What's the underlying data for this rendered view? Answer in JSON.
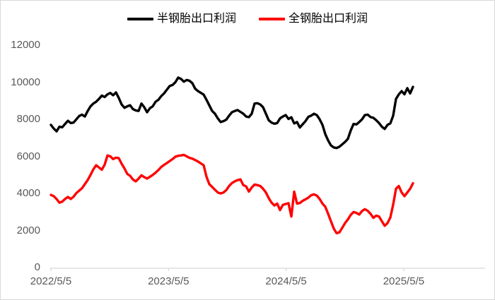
{
  "chart_data": {
    "type": "line",
    "title": "",
    "legend_position": "top",
    "grid": false,
    "colors": {
      "axis_line": "#d6d6d6",
      "tick_label": "#595959",
      "frame_border": "#d9d9d9",
      "background": "#ffffff"
    },
    "x_axis": {
      "unit": "years since 2022/5/5",
      "tick_labels": [
        "2022/5/5",
        "2023/5/5",
        "2024/5/5",
        "2025/5/5"
      ],
      "tick_positions": [
        0,
        1,
        2,
        3
      ],
      "axis_min": -0.006,
      "axis_max": 3.693
    },
    "y_axis": {
      "ticks": [
        0,
        2000,
        4000,
        6000,
        8000,
        10000,
        12000
      ],
      "min": 0,
      "max": 12000
    },
    "x_start": 0,
    "x_end": 3.079,
    "series": [
      {
        "name": "半钢胎出口利润",
        "color": "#000000",
        "values": [
          7700,
          7500,
          7350,
          7600,
          7570,
          7750,
          7920,
          7800,
          7820,
          8000,
          8180,
          8250,
          8150,
          8450,
          8700,
          8850,
          8950,
          9100,
          9280,
          9200,
          9350,
          9420,
          9300,
          9450,
          9150,
          8800,
          8620,
          8700,
          8760,
          8550,
          8480,
          8450,
          8850,
          8650,
          8380,
          8600,
          8700,
          8950,
          9050,
          9250,
          9400,
          9600,
          9800,
          9850,
          10000,
          10250,
          10180,
          10030,
          10120,
          10080,
          9950,
          9650,
          9520,
          9430,
          9330,
          9050,
          8750,
          8450,
          8300,
          8050,
          7850,
          7900,
          7980,
          8200,
          8380,
          8450,
          8500,
          8400,
          8300,
          8150,
          8120,
          8300,
          8850,
          8870,
          8800,
          8650,
          8300,
          7950,
          7820,
          7760,
          7800,
          8050,
          8150,
          8230,
          8020,
          8110,
          7780,
          7850,
          7560,
          7730,
          7900,
          8130,
          8200,
          8300,
          8230,
          8000,
          7700,
          7200,
          6860,
          6590,
          6480,
          6450,
          6520,
          6650,
          6780,
          6950,
          7400,
          7750,
          7720,
          7850,
          8000,
          8230,
          8250,
          8120,
          8080,
          7950,
          7800,
          7600,
          7480,
          7700,
          7780,
          8200,
          9100,
          9350,
          9520,
          9350,
          9680,
          9400,
          9750
        ]
      },
      {
        "name": "全钢胎出口利润",
        "color": "#ff0000",
        "values": [
          3920,
          3850,
          3700,
          3500,
          3560,
          3700,
          3810,
          3700,
          3820,
          4020,
          4150,
          4280,
          4500,
          4720,
          5000,
          5300,
          5520,
          5400,
          5280,
          5550,
          6050,
          6000,
          5850,
          5930,
          5900,
          5600,
          5350,
          5050,
          4950,
          4750,
          4650,
          4800,
          4980,
          4880,
          4800,
          4900,
          5000,
          5120,
          5260,
          5430,
          5540,
          5640,
          5750,
          5850,
          5980,
          6030,
          6050,
          6080,
          6000,
          5920,
          5880,
          5800,
          5720,
          5620,
          5520,
          4900,
          4500,
          4350,
          4200,
          4050,
          4000,
          4050,
          4180,
          4400,
          4560,
          4650,
          4720,
          4760,
          4450,
          4380,
          4100,
          4320,
          4480,
          4450,
          4400,
          4250,
          4050,
          3750,
          3500,
          3350,
          3450,
          3100,
          3380,
          3430,
          3470,
          2750,
          4100,
          3450,
          3480,
          3600,
          3680,
          3770,
          3900,
          3950,
          3880,
          3700,
          3450,
          3280,
          2900,
          2500,
          2100,
          1850,
          1900,
          2150,
          2400,
          2600,
          2840,
          3000,
          2950,
          2860,
          3050,
          3150,
          3060,
          2900,
          2680,
          2800,
          2750,
          2500,
          2250,
          2400,
          2700,
          3400,
          4250,
          4400,
          4050,
          3850,
          4050,
          4250,
          4550
        ]
      }
    ]
  }
}
